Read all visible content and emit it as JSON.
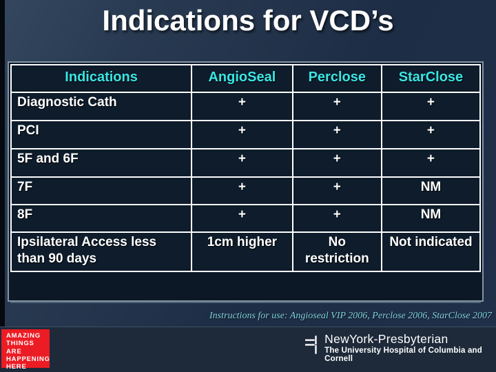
{
  "slide": {
    "title": "Indications for VCD’s",
    "table": {
      "headers": [
        "Indications",
        "AngioSeal",
        "Perclose",
        "StarClose"
      ],
      "rows": [
        {
          "label": "Diagnostic Cath",
          "cells": [
            "+",
            "+",
            "+"
          ]
        },
        {
          "label": "PCI",
          "cells": [
            "+",
            "+",
            "+"
          ]
        },
        {
          "label": "5F and 6F",
          "cells": [
            "+",
            "+",
            "+"
          ]
        },
        {
          "label": "7F",
          "cells": [
            "+",
            "+",
            "NM"
          ]
        },
        {
          "label": "8F",
          "cells": [
            "+",
            "+",
            "NM"
          ]
        },
        {
          "label": "Ipsilateral Access less than 90 days",
          "cells": [
            "1cm higher",
            "No restriction",
            "Not indicated"
          ]
        }
      ]
    },
    "footnote": "Instructions for use: Angioseal VIP 2006, Perclose 2006, StarClose 2007",
    "footer": {
      "banner_lines": [
        "AMAZING",
        "THINGS",
        "ARE",
        "HAPPENING",
        "HERE"
      ],
      "logo_name": "NewYork-Presbyterian",
      "logo_tagline": "The University Hospital of Columbia and Cornell"
    },
    "colors": {
      "header_text": "#3ae6e4",
      "cell_background": "#0e1c2b",
      "table_border": "#ffffff",
      "placeholder_border": "#8494a2",
      "banner_background": "#ec1c24",
      "footnote_text": "#7fd2da",
      "slide_background": "#1d2d45"
    }
  }
}
